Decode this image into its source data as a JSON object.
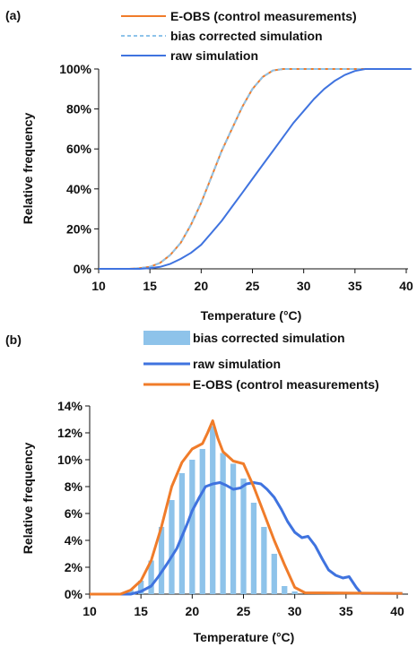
{
  "colors": {
    "eobs": "#f07c2a",
    "bias": "#8ec3ea",
    "raw": "#3f73df"
  },
  "chart_data": [
    {
      "panel": "(a)",
      "type": "line",
      "xlabel": "Temperature (°C)",
      "ylabel": "Relative frequency",
      "xlim": [
        10,
        40
      ],
      "ylim": [
        0,
        100
      ],
      "xticks": [
        "10",
        "15",
        "20",
        "25",
        "30",
        "35",
        "40"
      ],
      "yticks": [
        "0%",
        "20%",
        "40%",
        "60%",
        "80%",
        "100%"
      ],
      "legend": [
        {
          "name": "E-OBS (control measurements)",
          "style": "solid-orange"
        },
        {
          "name": "bias corrected simulation",
          "style": "dashed-lightblue"
        },
        {
          "name": "raw simulation",
          "style": "solid-blue"
        }
      ],
      "series": [
        {
          "name": "E-OBS (control measurements)",
          "x": [
            10,
            13,
            14,
            15,
            16,
            17,
            18,
            19,
            20,
            21,
            22,
            23,
            24,
            25,
            26,
            27,
            28,
            30,
            35,
            40.5
          ],
          "y": [
            0,
            0,
            0.3,
            1,
            3,
            7,
            13,
            22,
            33,
            46,
            59,
            70,
            81,
            90,
            96,
            99.3,
            100,
            100,
            100,
            100
          ]
        },
        {
          "name": "bias corrected simulation",
          "x": [
            10,
            13,
            14,
            15,
            16,
            17,
            18,
            19,
            20,
            21,
            22,
            23,
            24,
            25,
            26,
            27,
            28,
            30,
            35,
            40.5
          ],
          "y": [
            0,
            0,
            0.3,
            1,
            3,
            7,
            13,
            22,
            33,
            46,
            59,
            70,
            81,
            90,
            96,
            99.3,
            100,
            100,
            100,
            100
          ]
        },
        {
          "name": "raw simulation",
          "x": [
            10,
            14,
            15,
            16,
            17,
            18,
            19,
            20,
            21,
            22,
            23,
            24,
            25,
            26,
            27,
            28,
            29,
            30,
            31,
            32,
            33,
            34,
            35,
            36,
            40.5
          ],
          "y": [
            0,
            0,
            0.3,
            1,
            2.5,
            5,
            8,
            12,
            18,
            24,
            31,
            38,
            45,
            52,
            59,
            66,
            73,
            79,
            85,
            90,
            94,
            97,
            99,
            100,
            100
          ]
        }
      ]
    },
    {
      "panel": "(b)",
      "type": "bar+line",
      "xlabel": "Temperature (°C)",
      "ylabel": "Relative frequency",
      "xlim": [
        10,
        40
      ],
      "ylim": [
        0,
        14
      ],
      "xticks": [
        "10",
        "15",
        "20",
        "25",
        "30",
        "35",
        "40"
      ],
      "yticks": [
        "0%",
        "2%",
        "4%",
        "6%",
        "8%",
        "10%",
        "12%",
        "14%"
      ],
      "legend": [
        {
          "name": "bias corrected simulation",
          "style": "bar-lightblue"
        },
        {
          "name": "raw simulation",
          "style": "solid-blue"
        },
        {
          "name": "E-OBS (control measurements)",
          "style": "solid-orange"
        }
      ],
      "bars": {
        "name": "bias corrected simulation",
        "x": [
          14,
          15,
          16,
          17,
          18,
          19,
          20,
          21,
          22,
          23,
          24,
          25,
          26,
          27,
          28,
          29,
          30
        ],
        "values": [
          0.3,
          1,
          2.5,
          5,
          7,
          9,
          10,
          10.8,
          12.5,
          10.5,
          9.7,
          8.6,
          6.8,
          5,
          3,
          0.6,
          0.2
        ]
      },
      "series": [
        {
          "name": "raw simulation",
          "x": [
            10,
            14,
            15,
            16,
            16.7,
            17.5,
            18.5,
            19,
            19.5,
            20,
            20.7,
            21.3,
            22,
            22.7,
            23.3,
            24,
            24.7,
            25.3,
            26,
            26.7,
            27.3,
            28,
            28.7,
            29.3,
            30,
            30.7,
            31.3,
            32,
            32.7,
            33.3,
            34,
            34.7,
            35.3,
            36,
            36.5,
            40.5
          ],
          "y": [
            0,
            0,
            0.2,
            0.6,
            1.3,
            2.2,
            3.4,
            4.3,
            5.2,
            6.2,
            7.2,
            8,
            8.2,
            8.3,
            8.1,
            7.8,
            7.9,
            8.2,
            8.3,
            8.2,
            7.8,
            7.2,
            6.3,
            5.4,
            4.6,
            4.2,
            4.3,
            3.6,
            2.6,
            1.8,
            1.4,
            1.2,
            1.3,
            0.5,
            0.05,
            0.05
          ]
        },
        {
          "name": "E-OBS (control measurements)",
          "x": [
            10,
            13,
            14,
            15,
            16,
            17,
            18,
            19,
            20,
            21,
            21.5,
            22,
            22.5,
            23,
            24,
            25,
            26,
            27,
            28,
            29,
            30,
            31,
            40.5
          ],
          "y": [
            0,
            0,
            0.3,
            1,
            2.5,
            5,
            8,
            9.8,
            10.8,
            11.2,
            12,
            12.9,
            11.6,
            10.6,
            9.9,
            9.7,
            8,
            6,
            4,
            2.2,
            0.5,
            0.1,
            0.05
          ]
        }
      ]
    }
  ]
}
